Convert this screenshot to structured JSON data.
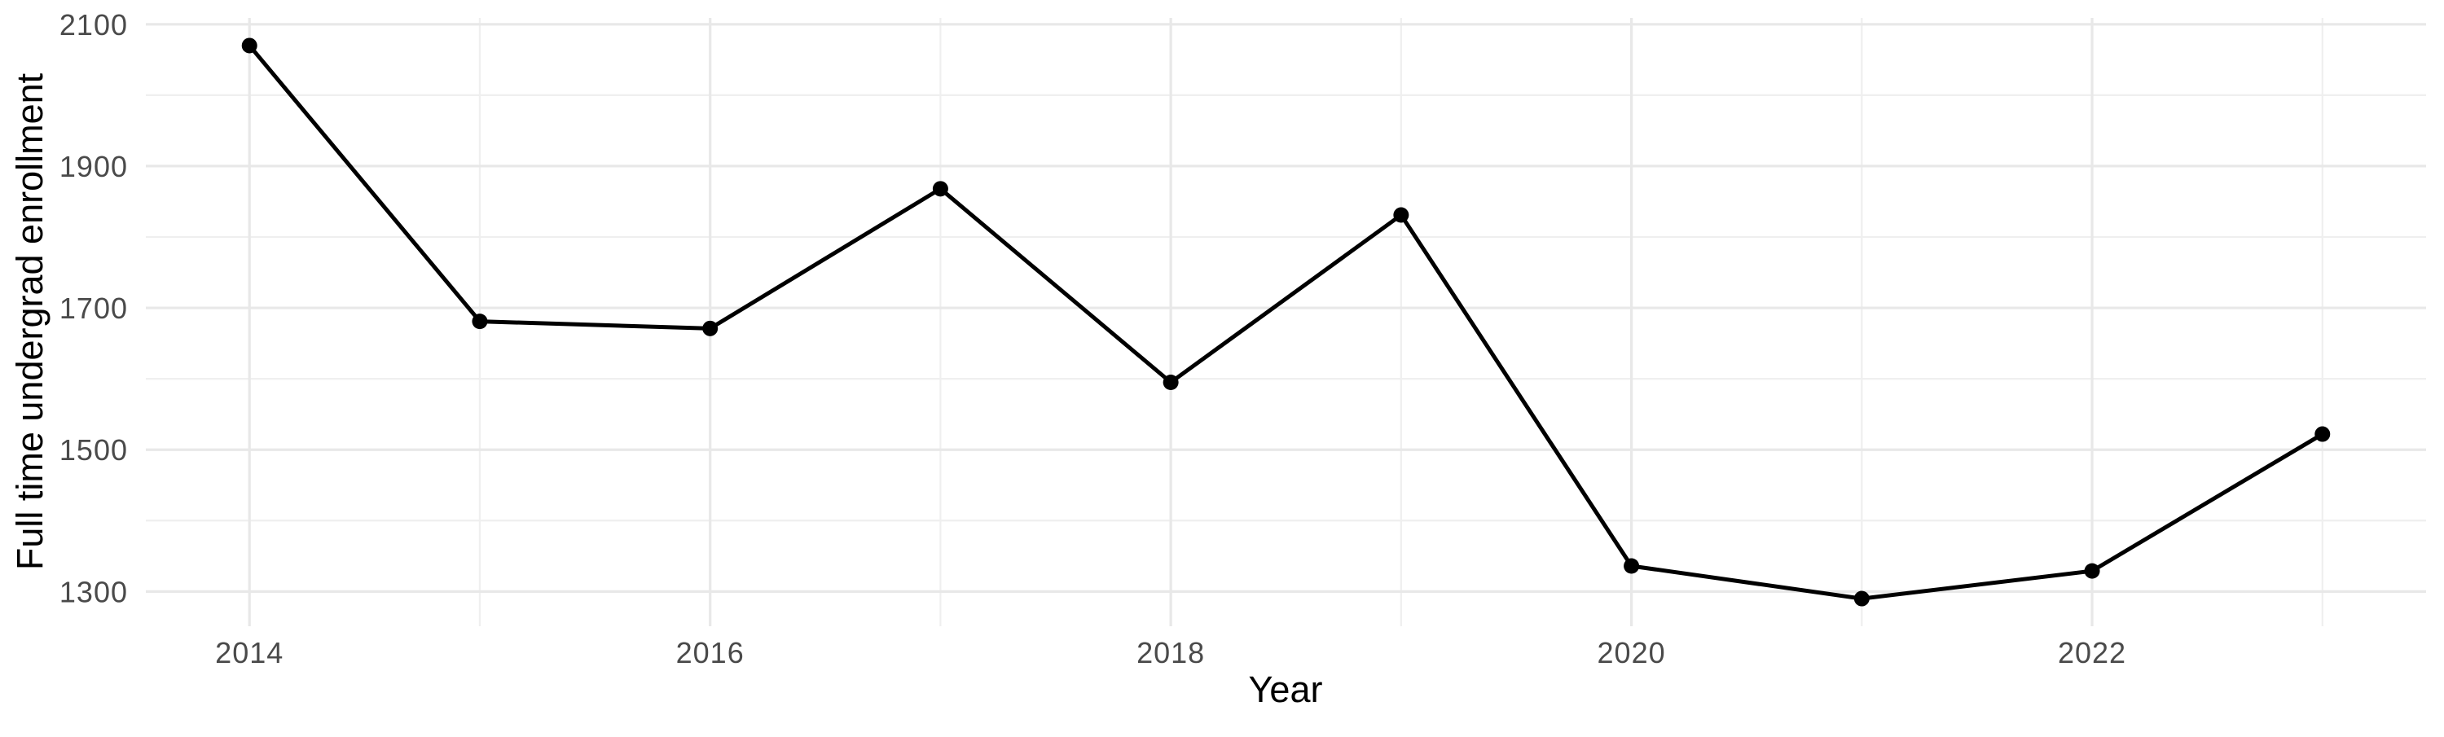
{
  "chart_data": {
    "type": "line",
    "title": "",
    "xlabel": "Year",
    "ylabel": "Full time undergrad enrollment",
    "series": [
      {
        "name": "Full time undergrad enrollment",
        "x": [
          2014,
          2015,
          2016,
          2017,
          2018,
          2019,
          2020,
          2021,
          2022,
          2023
        ],
        "values": [
          2070,
          1681,
          1671,
          1868,
          1595,
          1831,
          1336,
          1290,
          1329,
          1522
        ]
      }
    ],
    "x_ticks": [
      2014,
      2016,
      2018,
      2020,
      2022
    ],
    "x_minor_gridlines": [
      2015,
      2017,
      2019,
      2021,
      2023
    ],
    "y_ticks": [
      1300,
      1500,
      1700,
      1900,
      2100
    ],
    "y_minor_gridlines": [
      1400,
      1600,
      1800,
      2000
    ],
    "xlim": [
      2013.55,
      2023.45
    ],
    "ylim": [
      1251,
      2109
    ],
    "grid": "major+minor, light gray on white, no axis lines, no ticks",
    "legend": "none",
    "point_markers": true,
    "colors": {
      "line": "#000000",
      "point": "#000000",
      "grid_major": "#e8e8e8",
      "grid_minor": "#efefef",
      "axis_text": "#4a4a4a",
      "axis_title": "#000000",
      "background": "#ffffff"
    }
  }
}
